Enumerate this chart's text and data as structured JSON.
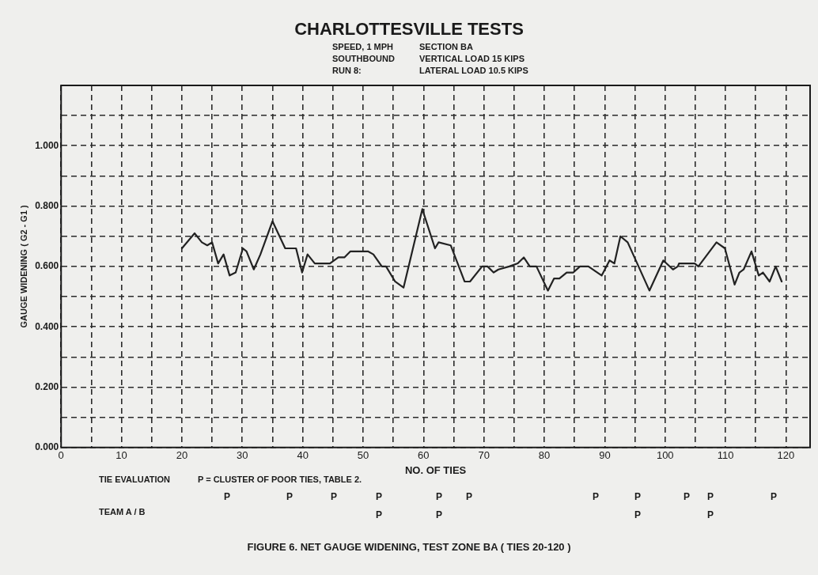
{
  "chart_data": {
    "type": "line",
    "title": "CHARLOTTESVILLE TESTS",
    "xlabel": "NO. OF TIES",
    "ylabel": "GAUGE WIDENING ( G2 - G1 )",
    "xlim": [
      0,
      124
    ],
    "xticks": [
      0,
      {
        "value": 5,
        "label": null
      },
      10,
      {
        "value": 15,
        "label": null
      },
      20,
      {
        "value": 25,
        "label": null
      },
      30,
      {
        "value": 35,
        "label": null
      },
      40,
      {
        "value": 45,
        "label": null
      },
      50,
      {
        "value": 55,
        "label": null
      },
      60,
      {
        "value": 65,
        "label": null
      },
      70,
      {
        "value": 75,
        "label": null
      },
      80,
      {
        "value": 85,
        "label": null
      },
      90,
      {
        "value": 95,
        "label": null
      },
      100,
      {
        "value": 105,
        "label": null
      },
      110,
      {
        "value": 115,
        "label": null
      },
      120
    ],
    "ylim": [
      0,
      1.2
    ],
    "yticks": [
      {
        "value": 0,
        "label": "0.000"
      },
      {
        "value": 0.1,
        "label": null
      },
      {
        "value": 0.2,
        "label": "0.200"
      },
      {
        "value": 0.3,
        "label": null
      },
      {
        "value": 0.4,
        "label": "0.400"
      },
      {
        "value": 0.5,
        "label": null
      },
      {
        "value": 0.6,
        "label": "0.600"
      },
      {
        "value": 0.7,
        "label": null
      },
      {
        "value": 0.8,
        "label": "0.800"
      },
      {
        "value": 0.9,
        "label": null
      },
      {
        "value": 1.0,
        "label": "1.000"
      },
      {
        "value": 1.1,
        "label": null
      }
    ],
    "grid": true,
    "line_style": "solid",
    "marker": "none",
    "legend": false,
    "x": [
      20,
      22.1,
      23.3,
      24.2,
      25,
      26,
      26.9,
      27.9,
      28.9,
      30.1,
      30.7,
      31.9,
      33,
      35,
      37.1,
      38.9,
      39.9,
      40.8,
      42,
      44.5,
      45.9,
      46.9,
      47.9,
      49.2,
      50.8,
      51.7,
      53.1,
      53.8,
      55.3,
      56.7,
      59.8,
      61.9,
      62.5,
      64.5,
      66.8,
      67.7,
      69.7,
      70.6,
      71.6,
      72.4,
      74.2,
      75.6,
      76.6,
      77.6,
      78.7,
      80.6,
      81.6,
      82.5,
      83.7,
      84.8,
      85.9,
      87.3,
      89.5,
      90.8,
      91.6,
      92.6,
      93.8,
      97.4,
      99.7,
      101.3,
      102.1,
      102.3,
      104,
      104.9,
      105.5,
      108.5,
      109.9,
      111.5,
      112.3,
      113,
      114.3,
      115.5,
      116.2,
      117.3,
      118.3,
      119.3
    ],
    "series": [
      {
        "color": "#222222",
        "values": [
          0.66,
          0.71,
          0.68,
          0.67,
          0.68,
          0.61,
          0.64,
          0.57,
          0.58,
          0.66,
          0.65,
          0.59,
          0.64,
          0.75,
          0.66,
          0.66,
          0.58,
          0.64,
          0.61,
          0.61,
          0.63,
          0.63,
          0.65,
          0.65,
          0.65,
          0.64,
          0.6,
          0.6,
          0.55,
          0.53,
          0.79,
          0.66,
          0.68,
          0.67,
          0.55,
          0.55,
          0.6,
          0.6,
          0.58,
          0.59,
          0.6,
          0.61,
          0.63,
          0.6,
          0.6,
          0.52,
          0.56,
          0.56,
          0.58,
          0.58,
          0.6,
          0.6,
          0.57,
          0.62,
          0.61,
          0.7,
          0.68,
          0.52,
          0.62,
          0.59,
          0.6,
          0.61,
          0.61,
          0.61,
          0.6,
          0.68,
          0.66,
          0.54,
          0.58,
          0.59,
          0.65,
          0.57,
          0.58,
          0.55,
          0.6,
          0.55
        ]
      }
    ],
    "annotations": [
      "SPEED, 1 MPH",
      "SECTION BA",
      "SOUTHBOUND",
      "VERTICAL LOAD 15 KIPS",
      "RUN 8:",
      "LATERAL LOAD 10.5 KIPS",
      "TIE EVALUATION",
      "P = CLUSTER OF POOR TIES, TABLE 2.",
      "TEAM A / B",
      "FIGURE 6. NET GAUGE WIDENING, TEST ZONE BA ( TIES 20-120 )",
      "P",
      "P",
      "P",
      "P",
      "P",
      "P",
      "P",
      "P",
      "P",
      "P",
      "P",
      "P",
      "P",
      "P",
      "P"
    ]
  }
}
